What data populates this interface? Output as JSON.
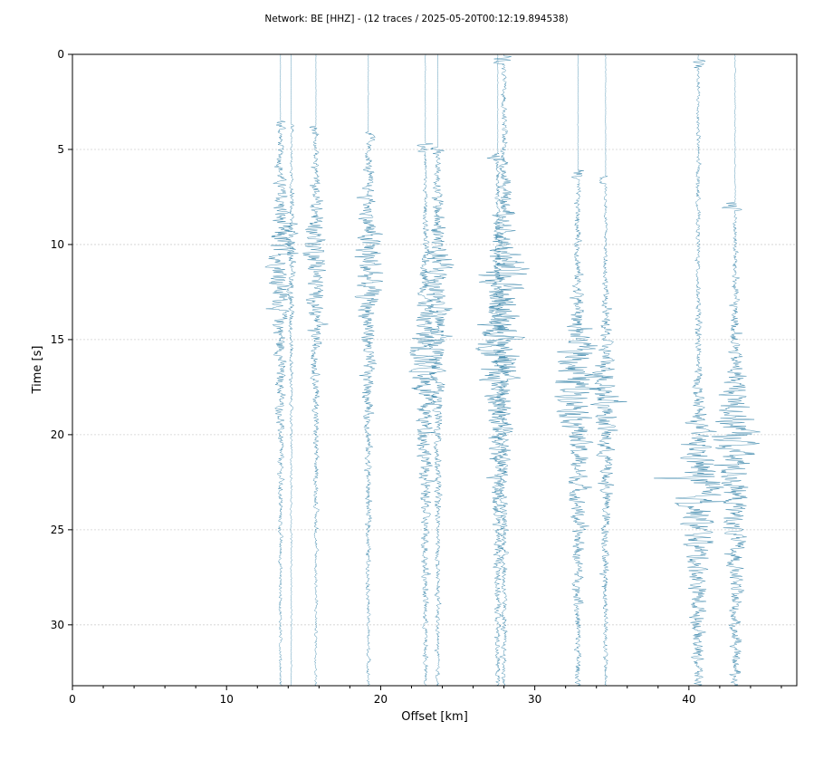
{
  "chart_data": {
    "type": "line",
    "title": "Network: BE [HHZ] - (12 traces / 2025-05-20T00:12:19.894538)",
    "xlabel": "Offset [km]",
    "ylabel": "Time [s]",
    "xlim": [
      0,
      47
    ],
    "ylim": [
      33.2,
      0
    ],
    "y_inverted": true,
    "x_ticks": [
      0,
      10,
      20,
      30,
      40
    ],
    "y_ticks": [
      0,
      5,
      10,
      15,
      20,
      25,
      30
    ],
    "grid": "horizontal",
    "legend": "none",
    "trace_color": "#2f7fa6",
    "series": [
      {
        "offset_km": 13.5,
        "onset_s": 3.5,
        "amplitude_km": 1.4,
        "peak_s": 9.7
      },
      {
        "offset_km": 14.2,
        "onset_s": 3.7,
        "amplitude_km": 0.5,
        "peak_s": 10.1
      },
      {
        "offset_km": 15.8,
        "onset_s": 3.8,
        "amplitude_km": 1.2,
        "peak_s": 10.0
      },
      {
        "offset_km": 19.2,
        "onset_s": 4.1,
        "amplitude_km": 1.6,
        "peak_s": 10.3
      },
      {
        "offset_km": 22.9,
        "onset_s": 4.7,
        "amplitude_km": 1.7,
        "peak_s": 15.3
      },
      {
        "offset_km": 23.7,
        "onset_s": 4.9,
        "amplitude_km": 1.6,
        "peak_s": 11.1
      },
      {
        "offset_km": 27.6,
        "onset_s": 5.2,
        "amplitude_km": 2.0,
        "peak_s": 15.5
      },
      {
        "offset_km": 28.0,
        "onset_s": 0.1,
        "amplitude_km": 2.2,
        "peak_s": 11.3
      },
      {
        "offset_km": 32.8,
        "onset_s": 6.1,
        "amplitude_km": 2.2,
        "peak_s": 16.7
      },
      {
        "offset_km": 34.6,
        "onset_s": 6.4,
        "amplitude_km": 1.4,
        "peak_s": 17.4
      },
      {
        "offset_km": 40.6,
        "onset_s": 0.3,
        "amplitude_km": 2.3,
        "peak_s": 22.3
      },
      {
        "offset_km": 43.0,
        "onset_s": 7.8,
        "amplitude_km": 2.4,
        "peak_s": 19.6
      }
    ]
  }
}
